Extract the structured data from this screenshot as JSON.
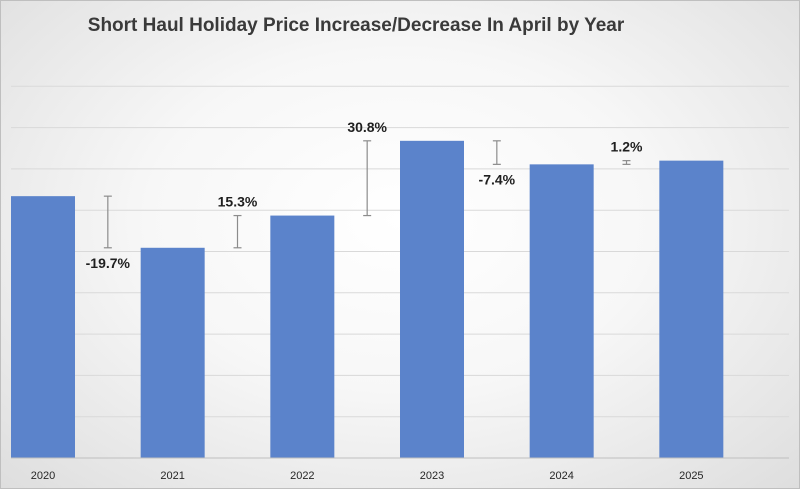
{
  "chart_data": {
    "type": "bar",
    "title": "Short Haul Holiday Price Increase/Decrease In April by Year",
    "categories": [
      "2020",
      "2021",
      "2022",
      "2023",
      "2024",
      "2025"
    ],
    "values": [
      63.4,
      50.9,
      58.7,
      76.8,
      71.1,
      72.0
    ],
    "changes": [
      "-19.7%",
      "15.3%",
      "30.8%",
      "-7.4%",
      "1.2%"
    ],
    "ylim": [
      0,
      100
    ],
    "grid": true,
    "legend": "none",
    "colors": {
      "bar": "#5b83cb",
      "grid": "#d9d9d9",
      "connector": "#8c8c8c",
      "axis": "#bfbfbf"
    }
  }
}
